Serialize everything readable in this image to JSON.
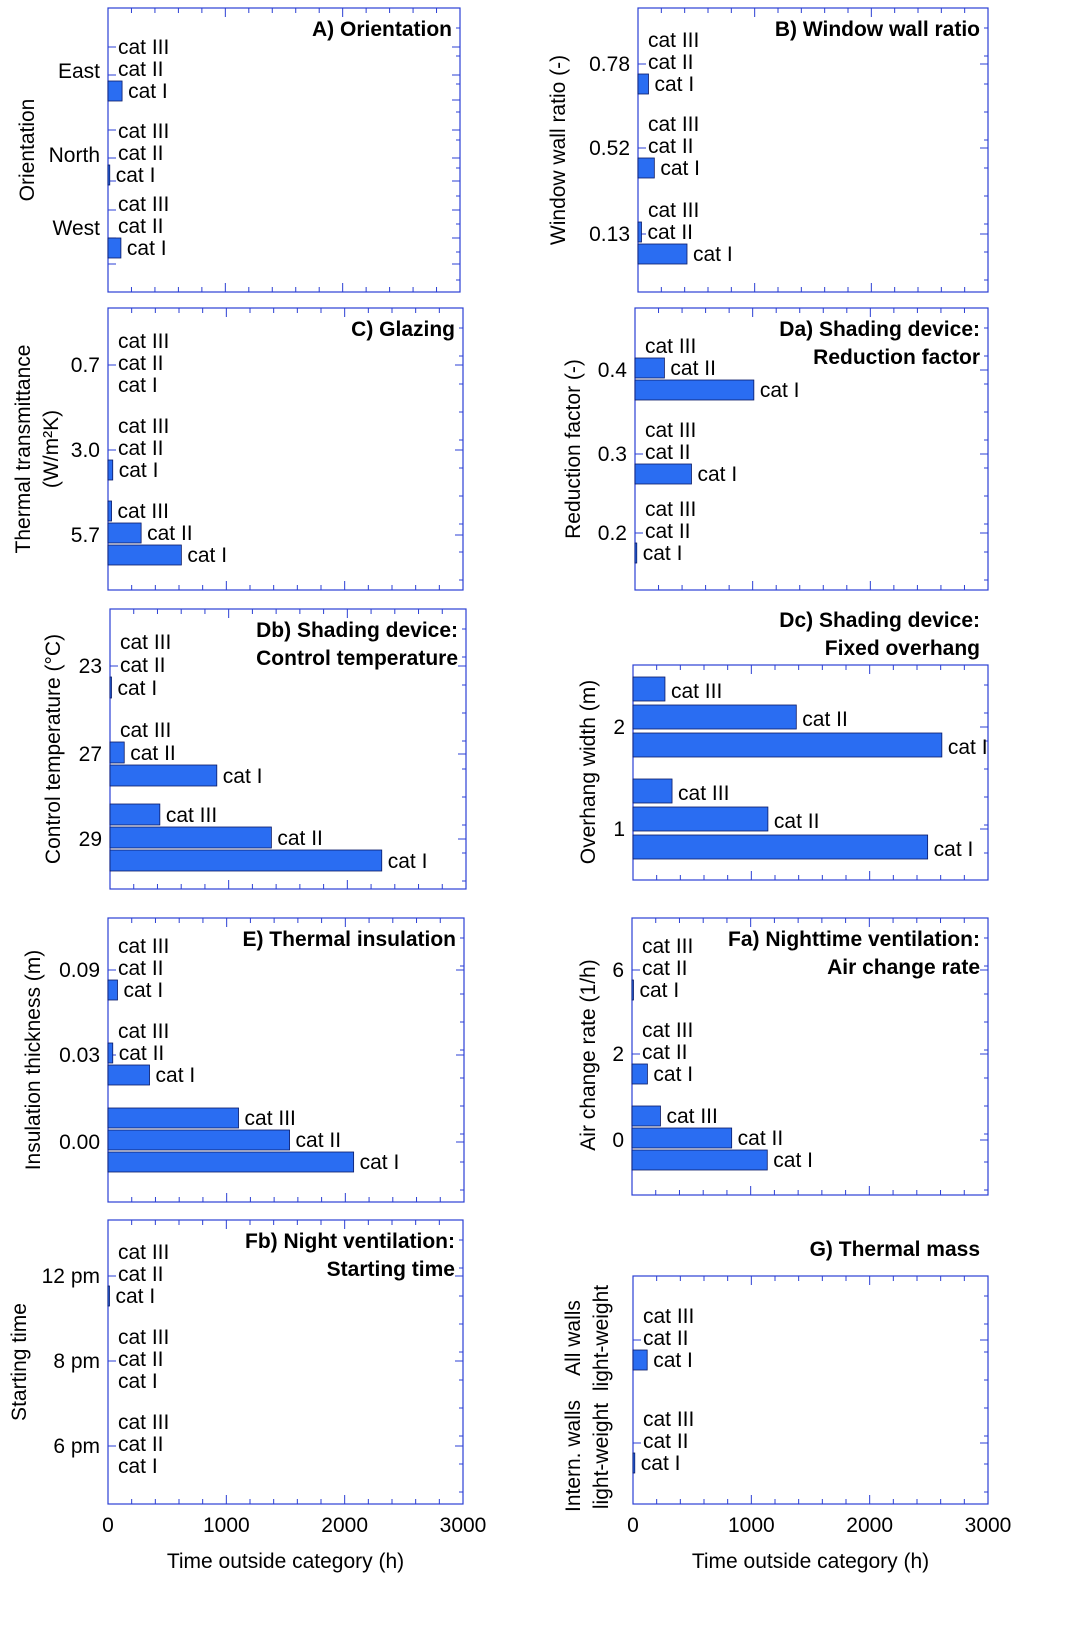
{
  "colors": {
    "bar_fill": "#2a6df2",
    "bar_stroke": "#0a1a66",
    "frame": "#2b3fd4",
    "text": "#000000"
  },
  "x_axis": {
    "label": "Time outside category (h)",
    "ticks": [
      "0",
      "1000",
      "2000",
      "3000"
    ],
    "range": [
      0,
      3000
    ]
  },
  "chart_data": [
    {
      "id": "A",
      "type": "bar",
      "orientation": "horizontal",
      "title": "A) Orientation",
      "ylabel": "Orientation",
      "groups": [
        {
          "label": "East",
          "values": {
            "cat I": 120,
            "cat II": 0,
            "cat III": 0
          }
        },
        {
          "label": "North",
          "values": {
            "cat I": 15,
            "cat II": 0,
            "cat III": 0
          }
        },
        {
          "label": "West",
          "values": {
            "cat I": 110,
            "cat II": 0,
            "cat III": 0
          }
        }
      ],
      "xlim": [
        0,
        3000
      ]
    },
    {
      "id": "B",
      "type": "bar",
      "orientation": "horizontal",
      "title": "B) Window wall ratio",
      "ylabel": "Window wall ratio (-)",
      "groups": [
        {
          "label": "0.78",
          "values": {
            "cat I": 90,
            "cat II": 0,
            "cat III": 0
          }
        },
        {
          "label": "0.52",
          "values": {
            "cat I": 140,
            "cat II": 0,
            "cat III": 0
          }
        },
        {
          "label": "0.13",
          "values": {
            "cat I": 420,
            "cat II": 30,
            "cat III": 0
          }
        }
      ],
      "xlim": [
        0,
        3000
      ]
    },
    {
      "id": "C",
      "type": "bar",
      "orientation": "horizontal",
      "title": "C) Glazing",
      "ylabel": "Thermal transmittance (W/m²K)",
      "groups": [
        {
          "label": "0.7",
          "values": {
            "cat I": 0,
            "cat II": 0,
            "cat III": 0
          }
        },
        {
          "label": "3.0",
          "values": {
            "cat I": 40,
            "cat II": 0,
            "cat III": 0
          }
        },
        {
          "label": "5.7",
          "values": {
            "cat I": 620,
            "cat II": 280,
            "cat III": 30
          }
        }
      ],
      "xlim": [
        0,
        3000
      ]
    },
    {
      "id": "Da",
      "type": "bar",
      "orientation": "horizontal",
      "title": [
        "Da) Shading device:",
        "Reduction factor"
      ],
      "ylabel": "Reduction factor (-)",
      "groups": [
        {
          "label": "0.4",
          "values": {
            "cat I": 1010,
            "cat II": 250,
            "cat III": 0
          }
        },
        {
          "label": "0.3",
          "values": {
            "cat I": 480,
            "cat II": 0,
            "cat III": 0
          }
        },
        {
          "label": "0.2",
          "values": {
            "cat I": 15,
            "cat II": 0,
            "cat III": 0
          }
        }
      ],
      "xlim": [
        0,
        3000
      ]
    },
    {
      "id": "Db",
      "type": "bar",
      "orientation": "horizontal",
      "title": [
        "Db) Shading device:",
        "Control temperature"
      ],
      "ylabel": "Control temperature (°C)",
      "groups": [
        {
          "label": "23",
          "values": {
            "cat I": 10,
            "cat II": 0,
            "cat III": 0
          }
        },
        {
          "label": "27",
          "values": {
            "cat I": 900,
            "cat II": 120,
            "cat III": 0
          }
        },
        {
          "label": "29",
          "values": {
            "cat I": 2290,
            "cat II": 1360,
            "cat III": 420
          }
        }
      ],
      "xlim": [
        0,
        3000
      ]
    },
    {
      "id": "Dc",
      "type": "bar",
      "orientation": "horizontal",
      "title": [
        "Dc) Shading device:",
        "Fixed overhang"
      ],
      "ylabel": "Overhang width (m)",
      "groups": [
        {
          "label": "2",
          "values": {
            "cat I": 2610,
            "cat II": 1380,
            "cat III": 270
          }
        },
        {
          "label": "1",
          "values": {
            "cat I": 2490,
            "cat II": 1140,
            "cat III": 330
          }
        }
      ],
      "xlim": [
        0,
        3000
      ]
    },
    {
      "id": "E",
      "type": "bar",
      "orientation": "horizontal",
      "title": "E) Thermal insulation",
      "ylabel": "Insulation thickness (m)",
      "groups": [
        {
          "label": "0.09",
          "values": {
            "cat I": 80,
            "cat II": 0,
            "cat III": 0
          }
        },
        {
          "label": "0.03",
          "values": {
            "cat I": 350,
            "cat II": 40,
            "cat III": 0
          }
        },
        {
          "label": "0.00",
          "values": {
            "cat I": 2070,
            "cat II": 1530,
            "cat III": 1100
          }
        }
      ],
      "xlim": [
        0,
        3000
      ]
    },
    {
      "id": "Fa",
      "type": "bar",
      "orientation": "horizontal",
      "title": [
        "Fa) Nighttime ventilation:",
        "Air change rate"
      ],
      "ylabel": "Air change rate (1/h)",
      "groups": [
        {
          "label": "6",
          "values": {
            "cat I": 10,
            "cat II": 0,
            "cat III": 0
          }
        },
        {
          "label": "2",
          "values": {
            "cat I": 130,
            "cat II": 0,
            "cat III": 0
          }
        },
        {
          "label": "0",
          "values": {
            "cat I": 1140,
            "cat II": 840,
            "cat III": 240
          }
        }
      ],
      "xlim": [
        0,
        3000
      ]
    },
    {
      "id": "Fb",
      "type": "bar",
      "orientation": "horizontal",
      "title": [
        "Fb) Night ventilation:",
        "Starting time"
      ],
      "ylabel": "Starting time",
      "groups": [
        {
          "label": "12 pm",
          "values": {
            "cat I": 10,
            "cat II": 0,
            "cat III": 0
          }
        },
        {
          "label": "8 pm",
          "values": {
            "cat I": 0,
            "cat II": 0,
            "cat III": 0
          }
        },
        {
          "label": "6 pm",
          "values": {
            "cat I": 0,
            "cat II": 0,
            "cat III": 0
          }
        }
      ],
      "xlim": [
        0,
        3000
      ]
    },
    {
      "id": "G",
      "type": "bar",
      "orientation": "horizontal",
      "title": "G) Thermal mass",
      "ylabel": "",
      "groups": [
        {
          "label": [
            "All walls",
            "light-weight"
          ],
          "values": {
            "cat I": 120,
            "cat II": 0,
            "cat III": 0
          }
        },
        {
          "label": [
            "Intern. walls",
            "light-weight"
          ],
          "values": {
            "cat I": 15,
            "cat II": 0,
            "cat III": 0
          }
        }
      ],
      "xlim": [
        0,
        3000
      ]
    }
  ]
}
